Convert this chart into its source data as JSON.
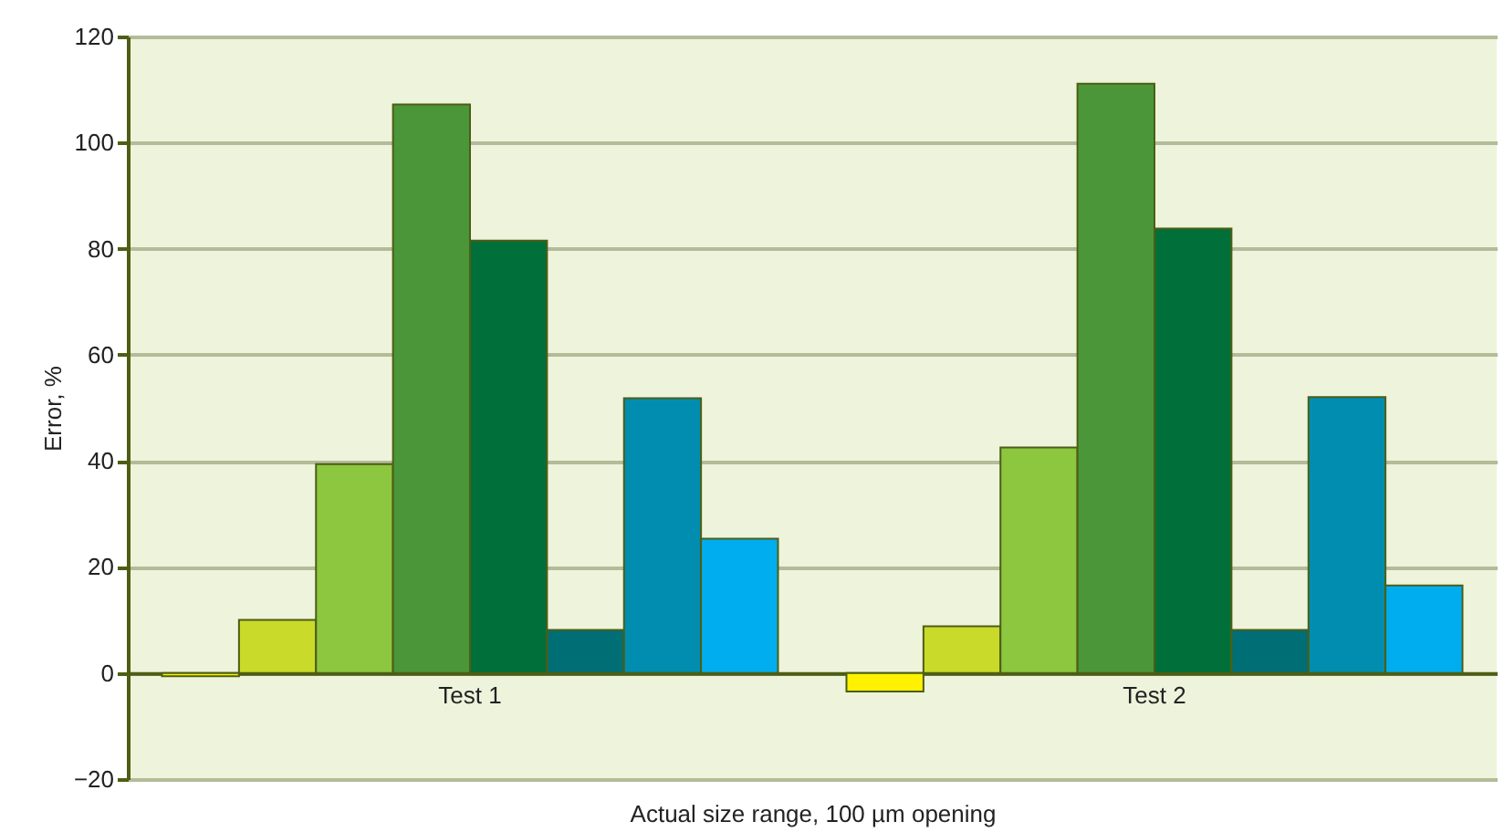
{
  "chart_data": {
    "type": "bar",
    "xlabel": "Actual size range, 100 µm opening",
    "ylabel": "Error, %",
    "categories": [
      "Test 1",
      "Test 2"
    ],
    "series": [
      {
        "color": "#fff200",
        "values": [
          -0.6,
          -3.5
        ]
      },
      {
        "color": "#c9da2a",
        "values": [
          10,
          8.8
        ]
      },
      {
        "color": "#8dc63f",
        "values": [
          39.4,
          42.5
        ]
      },
      {
        "color": "#4a9639",
        "values": [
          107.2,
          111.1
        ]
      },
      {
        "color": "#006f3a",
        "values": [
          81.5,
          83.8
        ]
      },
      {
        "color": "#006f75",
        "values": [
          8.1,
          8.1
        ]
      },
      {
        "color": "#008db0",
        "values": [
          51.8,
          52
        ]
      },
      {
        "color": "#00aeef",
        "values": [
          25.3,
          16.5
        ]
      }
    ],
    "ylim": [
      -20,
      120
    ],
    "yticks": [
      -20,
      0,
      20,
      40,
      60,
      80,
      100,
      120
    ],
    "grid": "y"
  }
}
